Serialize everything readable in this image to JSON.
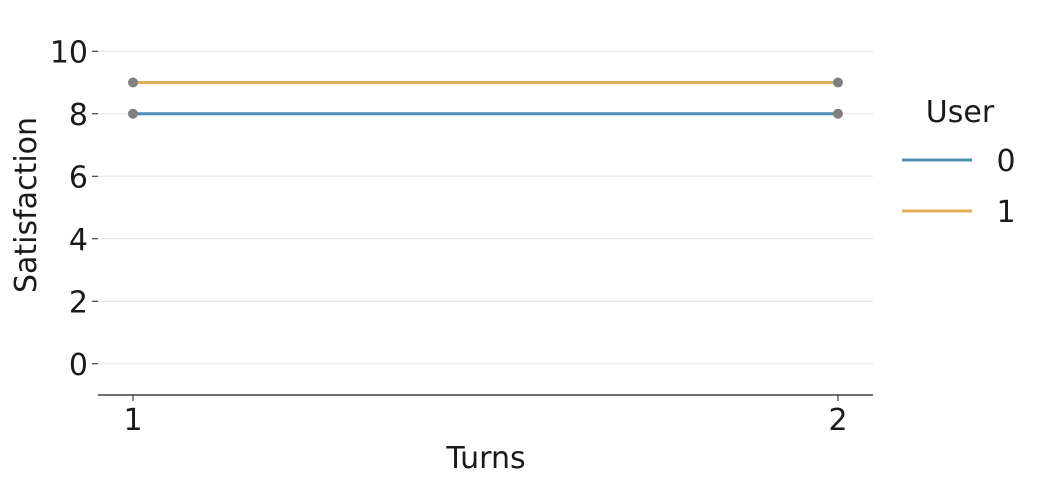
{
  "chart_data": {
    "type": "line",
    "xlabel": "Turns",
    "ylabel": "Satisfaction",
    "x": [
      1,
      2
    ],
    "xticks": [
      "1",
      "2"
    ],
    "yticks": [
      "0",
      "2",
      "4",
      "6",
      "8",
      "10"
    ],
    "ylim": [
      -1,
      11
    ],
    "grid": true,
    "legend": {
      "title": "User",
      "placement": "right"
    },
    "series": [
      {
        "name": "0",
        "values": [
          8,
          8
        ],
        "color": "#4c8fb5"
      },
      {
        "name": "1",
        "values": [
          9,
          9
        ],
        "color": "#e3ae58"
      }
    ],
    "marker_color": "#808080"
  }
}
